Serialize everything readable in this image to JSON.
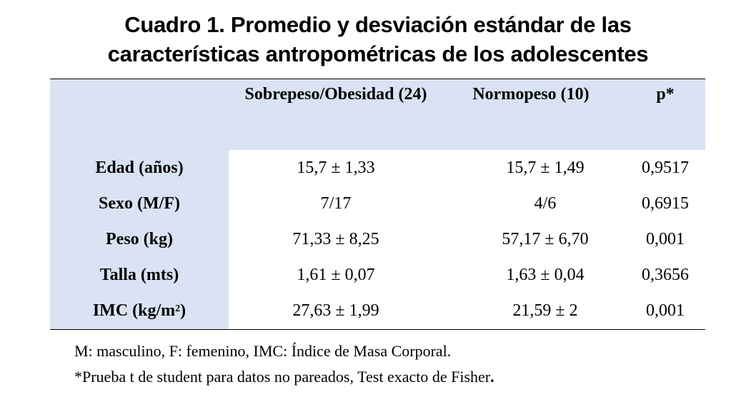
{
  "title": {
    "line1": "Cuadro 1. Promedio y desviación estándar de las",
    "line2": "características antropométricas de los adolescentes"
  },
  "table": {
    "headers": {
      "col1": "Sobrepeso/Obesidad (24)",
      "col2": "Normopeso (10)",
      "col3": "p*"
    },
    "rows": [
      {
        "label": "Edad (años)",
        "sob": "15,7 ± 1,33",
        "nor": "15,7 ± 1,49",
        "p": "0,9517"
      },
      {
        "label": "Sexo (M/F)",
        "sob": "7/17",
        "nor": "4/6",
        "p": "0,6915"
      },
      {
        "label": "Peso (kg)",
        "sob": "71,33 ± 8,25",
        "nor": "57,17 ± 6,70",
        "p": "0,001"
      },
      {
        "label": "Talla (mts)",
        "sob": "1,61 ± 0,07",
        "nor": "1,63 ± 0,04",
        "p": "0,3656"
      },
      {
        "label": "IMC (kg/m",
        "label_sup": "2",
        "label_end": ")",
        "sob": "27,63 ± 1,99",
        "nor": "21,59 ± 2",
        "p": "0,001"
      }
    ]
  },
  "notes": {
    "note1": "M: masculino, F: femenino, IMC: Índice de Masa Corporal.",
    "note2": "*Prueba t de student para datos no pareados, Test exacto de Fisher",
    "note2_end": "."
  },
  "colors": {
    "header_band": "#dae3f3",
    "rule": "#000000"
  }
}
